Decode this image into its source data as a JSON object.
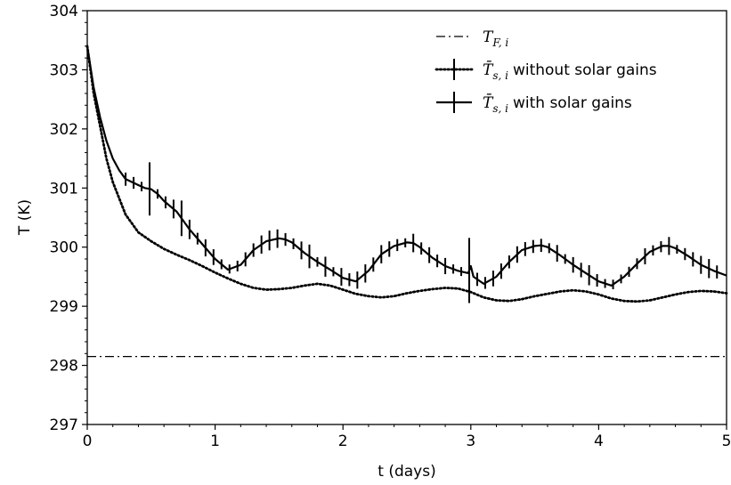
{
  "chart_data": {
    "type": "line",
    "xlabel": "t (days)",
    "ylabel": "T (K)",
    "xlim": [
      0,
      5
    ],
    "ylim": [
      297,
      304
    ],
    "x_ticks": [
      0,
      1,
      2,
      3,
      4,
      5
    ],
    "y_ticks": [
      297,
      298,
      299,
      300,
      301,
      302,
      303,
      304
    ],
    "x_tick_labels": [
      "0",
      "1",
      "2",
      "3",
      "4",
      "5"
    ],
    "y_tick_labels": [
      "297",
      "298",
      "299",
      "300",
      "301",
      "302",
      "303",
      "304"
    ],
    "grid": false,
    "legend_position": "top-right",
    "series": [
      {
        "name": "T_F,i",
        "legend_symbol": "T",
        "legend_subscript": "F, i",
        "legend_suffix": "",
        "style": "dashdot",
        "x": [
          0,
          5
        ],
        "y": [
          298.15,
          298.15
        ]
      },
      {
        "name": "T̄_s,i without solar gains",
        "legend_symbol": "T̄",
        "legend_subscript": "s, i",
        "legend_suffix": "without solar gains",
        "style": "dotted",
        "errorbars": true,
        "x": [
          0,
          0.05,
          0.1,
          0.15,
          0.2,
          0.3,
          0.4,
          0.5,
          0.6,
          0.7,
          0.8,
          0.9,
          1.0,
          1.1,
          1.2,
          1.3,
          1.4,
          1.5,
          1.6,
          1.7,
          1.8,
          1.9,
          2.0,
          2.1,
          2.2,
          2.3,
          2.4,
          2.5,
          2.6,
          2.7,
          2.8,
          2.9,
          3.0,
          3.1,
          3.2,
          3.3,
          3.4,
          3.5,
          3.6,
          3.7,
          3.8,
          3.9,
          4.0,
          4.1,
          4.2,
          4.3,
          4.4,
          4.5,
          4.6,
          4.7,
          4.8,
          4.9,
          5.0
        ],
        "y": [
          303.4,
          302.6,
          302.05,
          301.5,
          301.1,
          300.55,
          300.25,
          300.1,
          299.97,
          299.87,
          299.78,
          299.68,
          299.57,
          299.47,
          299.38,
          299.31,
          299.28,
          299.29,
          299.31,
          299.35,
          299.38,
          299.35,
          299.28,
          299.21,
          299.17,
          299.15,
          299.17,
          299.22,
          299.26,
          299.29,
          299.31,
          299.3,
          299.24,
          299.15,
          299.1,
          299.09,
          299.12,
          299.17,
          299.21,
          299.25,
          299.27,
          299.25,
          299.2,
          299.13,
          299.09,
          299.08,
          299.1,
          299.15,
          299.2,
          299.24,
          299.26,
          299.25,
          299.22
        ]
      },
      {
        "name": "T̄_s,i with solar gains",
        "legend_symbol": "T̄",
        "legend_subscript": "s, i",
        "legend_suffix": "with solar gains",
        "style": "solid",
        "errorbars": true,
        "x": [
          0,
          0.05,
          0.1,
          0.15,
          0.2,
          0.25,
          0.3,
          0.35,
          0.4,
          0.45,
          0.5,
          0.55,
          0.6,
          0.7,
          0.8,
          0.9,
          1.0,
          1.1,
          1.2,
          1.3,
          1.4,
          1.5,
          1.55,
          1.6,
          1.7,
          1.8,
          1.9,
          2.0,
          2.1,
          2.2,
          2.3,
          2.4,
          2.5,
          2.55,
          2.6,
          2.7,
          2.8,
          2.9,
          2.98,
          3.0,
          3.02,
          3.1,
          3.2,
          3.3,
          3.4,
          3.5,
          3.55,
          3.6,
          3.7,
          3.8,
          3.9,
          4.0,
          4.1,
          4.2,
          4.3,
          4.4,
          4.5,
          4.55,
          4.6,
          4.7,
          4.8,
          4.9,
          5.0
        ],
        "y": [
          303.4,
          302.7,
          302.2,
          301.8,
          301.5,
          301.3,
          301.15,
          301.1,
          301.05,
          301.0,
          300.98,
          300.9,
          300.78,
          300.6,
          300.3,
          300.05,
          299.8,
          299.62,
          299.7,
          299.95,
          300.1,
          300.15,
          300.13,
          300.08,
          299.9,
          299.75,
          299.62,
          299.48,
          299.42,
          299.6,
          299.88,
          300.02,
          300.08,
          300.07,
          300.0,
          299.82,
          299.68,
          299.6,
          299.56,
          299.68,
          299.5,
          299.38,
          299.5,
          299.75,
          299.95,
          300.02,
          300.03,
          300.0,
          299.86,
          299.7,
          299.56,
          299.42,
          299.35,
          299.5,
          299.72,
          299.92,
          300.02,
          300.02,
          299.98,
          299.85,
          299.7,
          299.6,
          299.52
        ]
      }
    ]
  }
}
